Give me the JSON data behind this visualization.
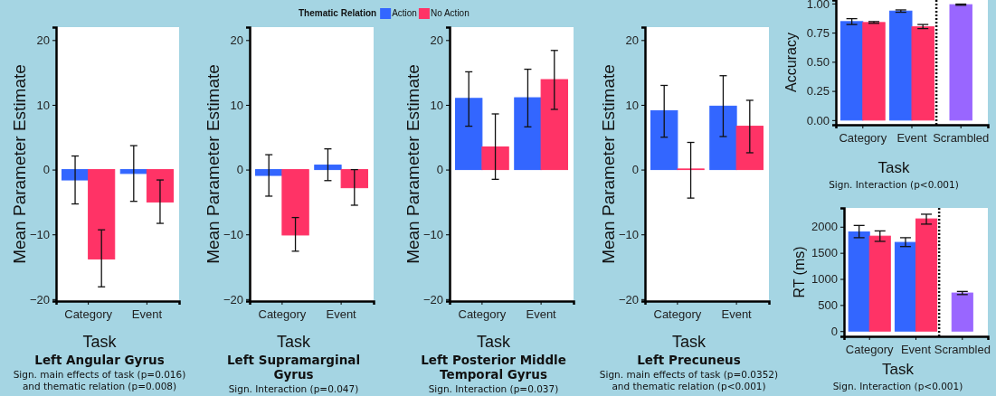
{
  "chart_data": [
    {
      "type": "bar",
      "title": "Left Angular Gyrus",
      "xlabel": "Task",
      "ylabel": "Mean Parameter Estimate",
      "categories": [
        "Category",
        "Event"
      ],
      "ylim": [
        -20.3,
        22
      ],
      "yticks": [
        -20,
        -10,
        0,
        10,
        20
      ],
      "series": [
        {
          "color": "#3366ff",
          "values": [
            -1.6,
            -0.6
          ],
          "errors": [
            [
              -5.3,
              2.1
            ],
            [
              -4.9,
              3.7
            ]
          ]
        },
        {
          "color": "#ff3366",
          "values": [
            -13.8,
            -5.0
          ],
          "errors": [
            [
              -18.1,
              -9.3
            ],
            [
              -8.3,
              -1.6
            ]
          ]
        }
      ],
      "annotations": [
        "Sign. main effects of task (p=0.016)",
        "and thematic relation (p=0.008)"
      ]
    },
    {
      "type": "bar",
      "title": "Left Supramarginal Gyrus",
      "xlabel": "Task",
      "ylabel": "Mean Parameter Estimate",
      "categories": [
        "Category",
        "Event"
      ],
      "ylim": [
        -20.3,
        22
      ],
      "yticks": [
        -20,
        -10,
        0,
        10,
        20
      ],
      "legend": "top",
      "legend_title": "Thematic Relation",
      "series": [
        {
          "name": "Action",
          "color": "#3366ff",
          "values": [
            -0.9,
            0.7
          ],
          "errors": [
            [
              -4.1,
              2.3
            ],
            [
              -1.7,
              3.2
            ]
          ]
        },
        {
          "name": "No Action",
          "color": "#ff3366",
          "values": [
            -10.1,
            -2.8
          ],
          "errors": [
            [
              -12.6,
              -7.4
            ],
            [
              -5.5,
              0
            ]
          ]
        }
      ],
      "annotations": [
        "Sign. Interaction (p=0.047)"
      ]
    },
    {
      "type": "bar",
      "title": "Left Posterior Middle Temporal Gyrus",
      "xlabel": "Task",
      "ylabel": "Mean Parameter Estimate",
      "categories": [
        "Category",
        "Event"
      ],
      "ylim": [
        -20.3,
        22
      ],
      "yticks": [
        -20,
        -10,
        0,
        10,
        20
      ],
      "series": [
        {
          "color": "#3366ff",
          "values": [
            11.0,
            11.1
          ],
          "errors": [
            [
              6.7,
              15.1
            ],
            [
              6.6,
              15.5
            ]
          ]
        },
        {
          "color": "#ff3366",
          "values": [
            3.5,
            13.9
          ],
          "errors": [
            [
              -1.5,
              8.6
            ],
            [
              9.3,
              18.4
            ]
          ]
        }
      ],
      "annotations": [
        "Sign. Interaction (p=0.037)"
      ]
    },
    {
      "type": "bar",
      "title": "Left Precuneus",
      "xlabel": "Task",
      "ylabel": "Mean Parameter Estimate",
      "categories": [
        "Category",
        "Event"
      ],
      "ylim": [
        -20.3,
        22
      ],
      "yticks": [
        -20,
        -10,
        0,
        10,
        20
      ],
      "series": [
        {
          "color": "#3366ff",
          "values": [
            9.1,
            9.8
          ],
          "errors": [
            [
              5.0,
              13.0
            ],
            [
              5.1,
              14.5
            ]
          ]
        },
        {
          "color": "#ff3366",
          "values": [
            0.1,
            6.7
          ],
          "errors": [
            [
              -4.4,
              4.2
            ],
            [
              2.6,
              10.7
            ]
          ]
        }
      ],
      "annotations": [
        "Sign. main effects of task (p=0.0352)",
        "and thematic relation (p<0.001)"
      ]
    },
    {
      "type": "bar",
      "xlabel": "Task",
      "ylabel": "Accuracy",
      "categories": [
        "Category",
        "Event",
        "Scrambled"
      ],
      "ylim": [
        -0.04,
        1.03
      ],
      "yticks": [
        {
          "value": 0,
          "label": "0.00"
        },
        {
          "value": 0.25,
          "label": "0.25"
        },
        {
          "value": 0.5,
          "label": "0.50"
        },
        {
          "value": 0.75,
          "label": "0.75"
        },
        {
          "value": 1,
          "label": "1.00"
        }
      ],
      "series": [
        {
          "color": "#3366ff",
          "values": [
            0.845,
            0.935,
            null
          ],
          "errors": [
            [
              0.82,
              0.87
            ],
            [
              0.925,
              0.945
            ],
            null
          ]
        },
        {
          "color": "#ff3366",
          "values": [
            0.837,
            0.8,
            null
          ],
          "errors": [
            [
              0.83,
              0.845
            ],
            [
              0.785,
              0.82
            ],
            null
          ]
        },
        {
          "color": "#9966ff",
          "values": [
            null,
            null,
            0.99
          ],
          "errors": [
            null,
            null,
            [
              0.985,
              0.995
            ]
          ]
        }
      ],
      "annotations": [
        "Sign. Interaction (p<0.001)"
      ]
    },
    {
      "type": "bar",
      "xlabel": "Task",
      "ylabel": "RT (ms)",
      "categories": [
        "Category",
        "Event",
        "Scrambled"
      ],
      "ylim": [
        -100,
        2360
      ],
      "yticks": [
        0,
        500,
        1000,
        1500,
        2000
      ],
      "series": [
        {
          "color": "#3366ff",
          "values": [
            1900,
            1700,
            null
          ],
          "errors": [
            [
              1790,
              2025
            ],
            [
              1620,
              1790
            ],
            null
          ]
        },
        {
          "color": "#ff3366",
          "values": [
            1820,
            2150,
            null
          ],
          "errors": [
            [
              1720,
              1920
            ],
            [
              2050,
              2240
            ],
            null
          ]
        },
        {
          "color": "#9966ff",
          "values": [
            null,
            null,
            730
          ],
          "errors": [
            null,
            null,
            [
              700,
              760
            ]
          ]
        }
      ],
      "annotations": [
        "Sign. Interaction (p<0.001)"
      ]
    }
  ]
}
